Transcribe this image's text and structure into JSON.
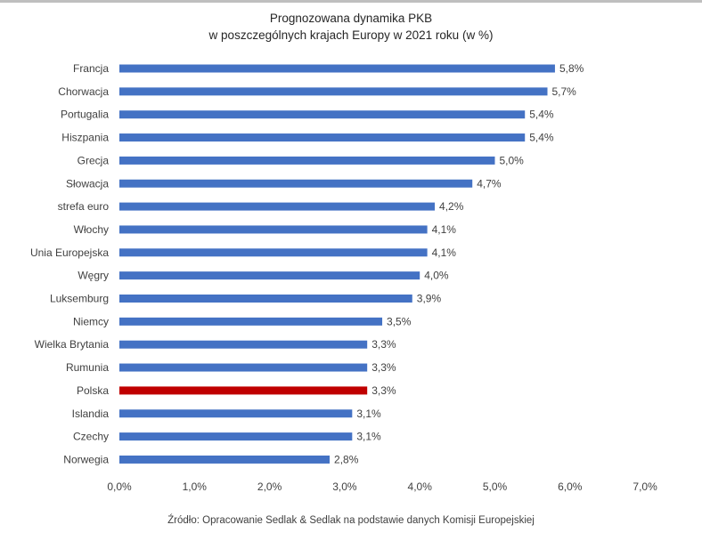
{
  "chart_data": {
    "type": "bar",
    "orientation": "horizontal",
    "title": [
      "Prognozowana dynamika PKB",
      "w poszczególnych krajach Europy w 2021 roku (w %)"
    ],
    "categories": [
      "Francja",
      "Chorwacja",
      "Portugalia",
      "Hiszpania",
      "Grecja",
      "Słowacja",
      "strefa euro",
      "Włochy",
      "Unia Europejska",
      "Węgry",
      "Luksemburg",
      "Niemcy",
      "Wielka Brytania",
      "Rumunia",
      "Polska",
      "Islandia",
      "Czechy",
      "Norwegia"
    ],
    "values": [
      5.8,
      5.7,
      5.4,
      5.4,
      5.0,
      4.7,
      4.2,
      4.1,
      4.1,
      4.0,
      3.9,
      3.5,
      3.3,
      3.3,
      3.3,
      3.1,
      3.1,
      2.8
    ],
    "value_labels": [
      "5,8%",
      "5,7%",
      "5,4%",
      "5,4%",
      "5,0%",
      "4,7%",
      "4,2%",
      "4,1%",
      "4,1%",
      "4,0%",
      "3,9%",
      "3,5%",
      "3,3%",
      "3,3%",
      "3,3%",
      "3,1%",
      "3,1%",
      "2,8%"
    ],
    "xlim": [
      0,
      7
    ],
    "x_ticks": [
      0,
      1,
      2,
      3,
      4,
      5,
      6,
      7
    ],
    "x_tick_labels": [
      "0,0%",
      "1,0%",
      "2,0%",
      "3,0%",
      "4,0%",
      "5,0%",
      "6,0%",
      "7,0%"
    ],
    "bar_color": "#4472c4",
    "highlight": {
      "category": "Polska",
      "color": "#c00000"
    },
    "grid": false,
    "legend": "none",
    "xlabel": "",
    "ylabel": ""
  },
  "source": "Źródło: Opracowanie Sedlak & Sedlak na podstawie danych Komisji Europejskiej"
}
